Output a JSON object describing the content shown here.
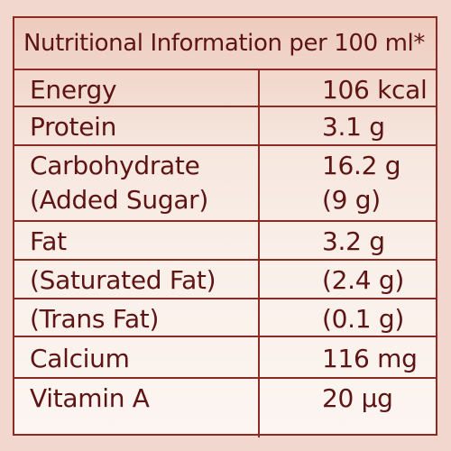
{
  "title": "Nutritional Information per 100 ml*",
  "rows": [
    {
      "nutrient": [
        "Energy"
      ],
      "amount": [
        "106 kcal"
      ]
    },
    {
      "nutrient": [
        "Protein"
      ],
      "amount": [
        "3.1 g"
      ]
    },
    {
      "nutrient": [
        "Carbohydrate",
        "(Added Sugar)"
      ],
      "amount": [
        "16.2 g",
        "(9 g)"
      ]
    },
    {
      "nutrient": [
        "Fat"
      ],
      "amount": [
        "3.2 g"
      ]
    },
    {
      "nutrient": [
        "(Saturated Fat)"
      ],
      "amount": [
        "(2.4 g)"
      ]
    },
    {
      "nutrient": [
        "(Trans Fat)"
      ],
      "amount": [
        "(0.1 g)"
      ]
    },
    {
      "nutrient": [
        "Calcium"
      ],
      "amount": [
        "116 mg"
      ]
    },
    {
      "nutrient": [
        "Vitamin A"
      ],
      "amount": [
        "20 µg"
      ]
    }
  ]
}
